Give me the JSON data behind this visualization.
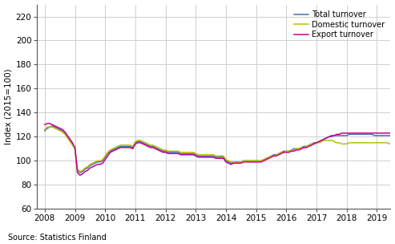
{
  "title": "",
  "ylabel": "Index (2015=100)",
  "source": "Source: Statistics Finland",
  "ylim": [
    60,
    230
  ],
  "yticks": [
    60,
    80,
    100,
    120,
    140,
    160,
    180,
    200,
    220
  ],
  "xlim": [
    2007.75,
    2019.45
  ],
  "xticks": [
    2008,
    2009,
    2010,
    2011,
    2012,
    2013,
    2014,
    2015,
    2016,
    2017,
    2018,
    2019
  ],
  "line_colors": [
    "#4272b8",
    "#b8c000",
    "#c8008c"
  ],
  "line_labels": [
    "Total turnover",
    "Domestic turnover",
    "Export turnover"
  ],
  "line_width": 1.1,
  "grid_color": "#c8c8c8",
  "bg_color": "#ffffff",
  "total_turnover": [
    125,
    127,
    128,
    129,
    128,
    127,
    126,
    125,
    123,
    120,
    117,
    114,
    110,
    92,
    90,
    91,
    93,
    94,
    96,
    97,
    98,
    99,
    99,
    100,
    103,
    106,
    108,
    109,
    110,
    111,
    112,
    112,
    112,
    112,
    112,
    111,
    115,
    116,
    116,
    115,
    114,
    113,
    112,
    112,
    111,
    110,
    109,
    108,
    108,
    107,
    107,
    107,
    107,
    107,
    106,
    106,
    106,
    106,
    106,
    106,
    105,
    104,
    104,
    104,
    104,
    104,
    104,
    104,
    103,
    103,
    103,
    103,
    100,
    99,
    98,
    99,
    99,
    99,
    99,
    100,
    100,
    100,
    100,
    100,
    100,
    100,
    100,
    101,
    102,
    103,
    104,
    105,
    105,
    106,
    107,
    108,
    108,
    108,
    109,
    110,
    110,
    110,
    111,
    112,
    112,
    113,
    114,
    115,
    115,
    116,
    117,
    118,
    119,
    120,
    120,
    121,
    121,
    121,
    121,
    121,
    121,
    122,
    122,
    122,
    122,
    122,
    122,
    122,
    122,
    122,
    122,
    121,
    121,
    121,
    121,
    121,
    121,
    121,
    121,
    121,
    121,
    121,
    121,
    120
  ],
  "domestic_turnover": [
    126,
    128,
    128,
    128,
    127,
    126,
    125,
    124,
    122,
    119,
    116,
    113,
    110,
    93,
    91,
    92,
    94,
    95,
    97,
    98,
    99,
    100,
    100,
    101,
    104,
    107,
    109,
    110,
    111,
    112,
    113,
    113,
    113,
    113,
    113,
    112,
    116,
    117,
    117,
    116,
    115,
    114,
    113,
    113,
    112,
    111,
    110,
    109,
    109,
    108,
    108,
    108,
    108,
    108,
    107,
    107,
    107,
    107,
    107,
    107,
    106,
    105,
    105,
    105,
    105,
    105,
    105,
    105,
    104,
    104,
    104,
    104,
    101,
    100,
    99,
    99,
    99,
    99,
    99,
    100,
    100,
    100,
    100,
    100,
    100,
    100,
    100,
    101,
    102,
    103,
    104,
    104,
    105,
    106,
    107,
    107,
    108,
    108,
    109,
    109,
    110,
    110,
    111,
    111,
    112,
    113,
    114,
    114,
    115,
    115,
    116,
    117,
    117,
    117,
    117,
    116,
    115,
    115,
    114,
    114,
    114,
    115,
    115,
    115,
    115,
    115,
    115,
    115,
    115,
    115,
    115,
    115,
    115,
    115,
    115,
    115,
    115,
    114,
    114,
    114,
    114,
    114,
    114,
    114
  ],
  "export_turnover": [
    130,
    131,
    131,
    130,
    129,
    128,
    127,
    126,
    124,
    121,
    118,
    115,
    111,
    90,
    88,
    89,
    91,
    92,
    94,
    95,
    96,
    97,
    97,
    98,
    101,
    104,
    107,
    108,
    109,
    110,
    111,
    111,
    111,
    111,
    111,
    110,
    114,
    115,
    115,
    114,
    113,
    112,
    111,
    111,
    110,
    109,
    108,
    107,
    107,
    106,
    106,
    106,
    106,
    106,
    105,
    105,
    105,
    105,
    105,
    105,
    104,
    103,
    103,
    103,
    103,
    103,
    103,
    103,
    102,
    102,
    102,
    102,
    99,
    98,
    97,
    98,
    98,
    98,
    98,
    99,
    99,
    99,
    99,
    99,
    99,
    99,
    99,
    100,
    101,
    102,
    103,
    104,
    104,
    105,
    106,
    107,
    107,
    107,
    108,
    108,
    109,
    109,
    110,
    111,
    111,
    112,
    113,
    114,
    115,
    116,
    117,
    118,
    119,
    120,
    121,
    121,
    122,
    122,
    123,
    123,
    123,
    123,
    123,
    123,
    123,
    123,
    123,
    123,
    123,
    123,
    123,
    123,
    123,
    123,
    123,
    123,
    123,
    123,
    123,
    123,
    123,
    123,
    123,
    123
  ]
}
